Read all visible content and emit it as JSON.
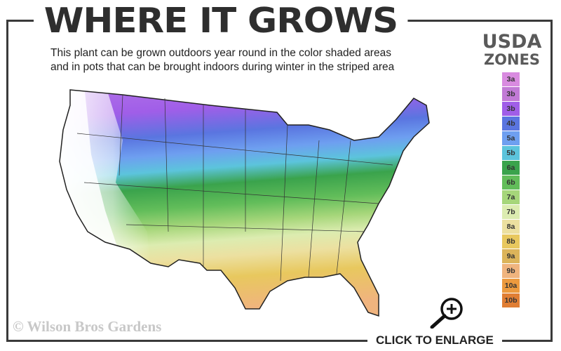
{
  "header": {
    "title": "WHERE IT GROWS",
    "subtitle_line1": "This plant can be grown outdoors year round in the color shaded areas",
    "subtitle_line2": "and in pots that can be brought indoors during winter in the striped area"
  },
  "legend": {
    "title_line1": "USDA",
    "title_line2": "ZONES",
    "zones": [
      {
        "label": "3a",
        "color": "#d98be0"
      },
      {
        "label": "3b",
        "color": "#c27ad6"
      },
      {
        "label": "3b",
        "color": "#a05ee8"
      },
      {
        "label": "4b",
        "color": "#5a75e0"
      },
      {
        "label": "5a",
        "color": "#6e9ff0"
      },
      {
        "label": "5b",
        "color": "#5cc4dc"
      },
      {
        "label": "6a",
        "color": "#3aa34c"
      },
      {
        "label": "6b",
        "color": "#62bd5a"
      },
      {
        "label": "7a",
        "color": "#a6d67a"
      },
      {
        "label": "7b",
        "color": "#dcecb0"
      },
      {
        "label": "8a",
        "color": "#ece0a0"
      },
      {
        "label": "8b",
        "color": "#e8c85e"
      },
      {
        "label": "9a",
        "color": "#dcb45a"
      },
      {
        "label": "9b",
        "color": "#f0b47e"
      },
      {
        "label": "10a",
        "color": "#ec9a3e"
      },
      {
        "label": "10b",
        "color": "#e07e34"
      }
    ]
  },
  "footer": {
    "copyright": "© Wilson Bros Gardens",
    "enlarge_label": "CLICK TO ENLARGE",
    "zoom_icon": "magnifier-plus-icon"
  }
}
